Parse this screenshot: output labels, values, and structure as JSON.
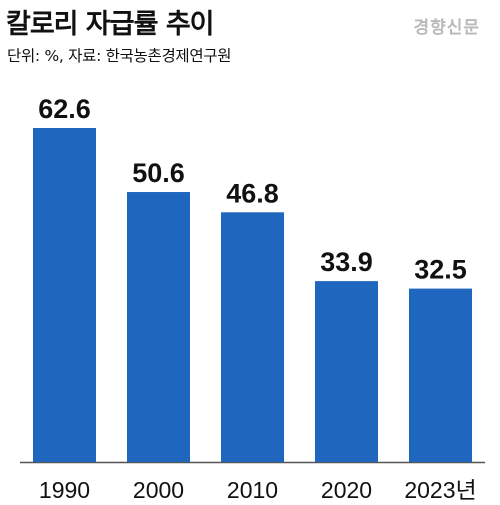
{
  "header": {
    "title": "칼로리 자급률 추이",
    "source": "단위: %, 자료: 한국농촌경제연구원",
    "watermark": "경향신문"
  },
  "colors": {
    "bar": "#1f66bf",
    "axis": "#555555"
  },
  "chart_data": {
    "type": "bar",
    "title": "칼로리 자급률 추이",
    "unit": "%",
    "source": "한국농촌경제연구원",
    "categories": [
      "1990",
      "2000",
      "2010",
      "2020",
      "2023년"
    ],
    "values": [
      62.6,
      50.6,
      46.8,
      33.9,
      32.5
    ],
    "ylim": [
      0,
      70
    ],
    "grid": false,
    "legend": "none"
  }
}
